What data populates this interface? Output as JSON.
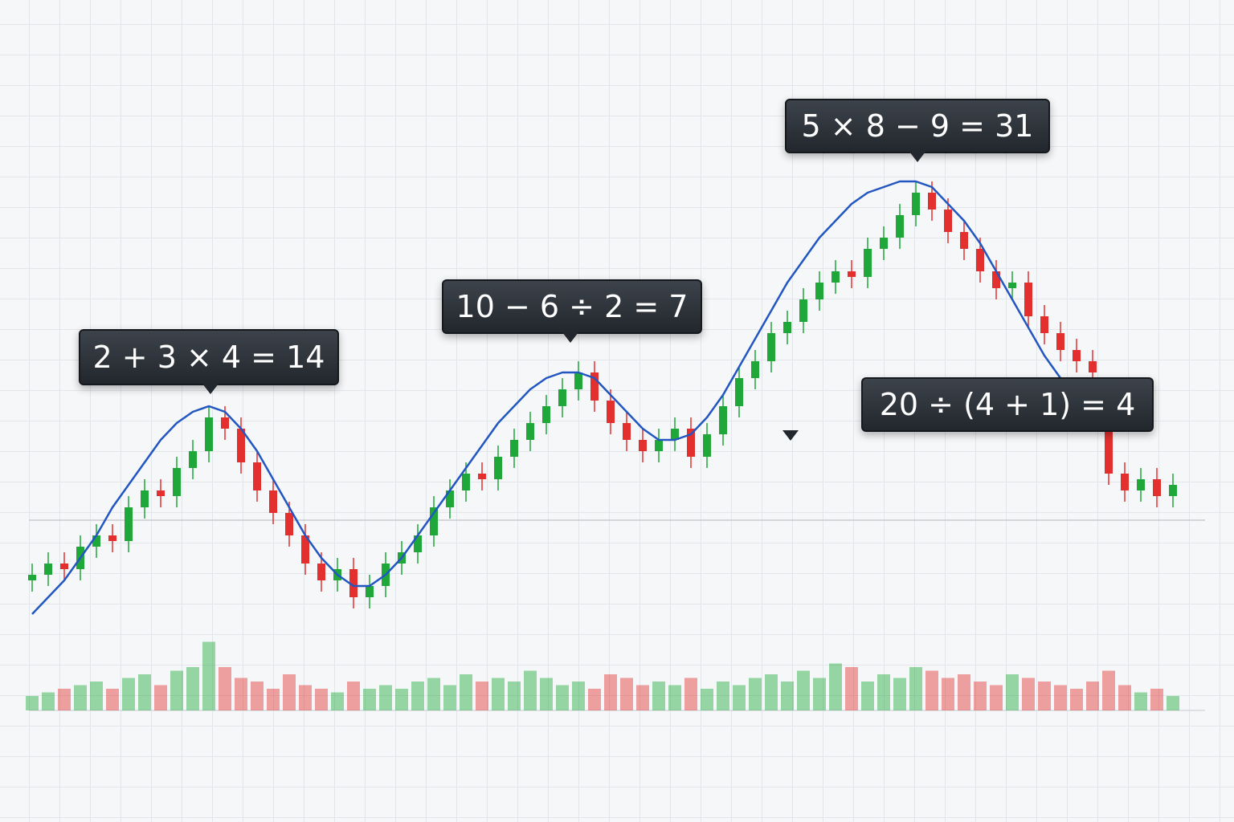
{
  "chart_data": {
    "type": "candlestick",
    "annotations": [
      "2 + 3 × 4 = 14",
      "10 − 6 ÷ 2 = 7",
      "5 × 8 − 9 = 31",
      "20 ÷ (4 + 1) = 4"
    ],
    "open": [
      11,
      12,
      14,
      13,
      17,
      19,
      18,
      24,
      27,
      26,
      31,
      34,
      40,
      38,
      32,
      27,
      23,
      19,
      14,
      11,
      13,
      8,
      10,
      14,
      16,
      19,
      24,
      27,
      30,
      29,
      33,
      36,
      39,
      42,
      45,
      48,
      43,
      39,
      36,
      34,
      36,
      38,
      33,
      37,
      42,
      47,
      50,
      55,
      57,
      61,
      64,
      66,
      65,
      70,
      72,
      76,
      80,
      77,
      73,
      70,
      66,
      63,
      64,
      58,
      55,
      52,
      50,
      38,
      30,
      27,
      29,
      26
    ],
    "high": [
      14,
      16,
      16,
      19,
      21,
      21,
      26,
      29,
      29,
      33,
      36,
      42,
      42,
      40,
      34,
      29,
      25,
      21,
      16,
      15,
      15,
      12,
      16,
      18,
      21,
      26,
      29,
      32,
      32,
      35,
      38,
      41,
      44,
      47,
      50,
      50,
      45,
      41,
      38,
      38,
      40,
      40,
      39,
      44,
      49,
      52,
      57,
      59,
      63,
      66,
      68,
      68,
      72,
      74,
      78,
      82,
      82,
      79,
      75,
      72,
      68,
      66,
      66,
      60,
      57,
      54,
      52,
      40,
      32,
      31,
      31,
      30
    ],
    "low": [
      9,
      10,
      11,
      11,
      15,
      16,
      16,
      22,
      24,
      24,
      29,
      32,
      36,
      30,
      25,
      21,
      17,
      12,
      9,
      9,
      6,
      6,
      8,
      12,
      14,
      17,
      22,
      25,
      27,
      27,
      31,
      34,
      37,
      40,
      43,
      41,
      37,
      34,
      32,
      32,
      34,
      31,
      31,
      35,
      40,
      45,
      48,
      53,
      55,
      59,
      62,
      63,
      63,
      68,
      70,
      74,
      75,
      71,
      68,
      64,
      61,
      61,
      56,
      53,
      50,
      48,
      46,
      28,
      25,
      25,
      24,
      24
    ],
    "close": [
      12,
      14,
      13,
      17,
      19,
      18,
      24,
      27,
      26,
      31,
      34,
      40,
      38,
      32,
      27,
      23,
      19,
      14,
      11,
      13,
      8,
      10,
      14,
      16,
      19,
      24,
      27,
      30,
      29,
      33,
      36,
      39,
      42,
      45,
      48,
      43,
      39,
      36,
      34,
      36,
      38,
      33,
      37,
      42,
      47,
      50,
      55,
      57,
      61,
      64,
      66,
      65,
      70,
      72,
      76,
      80,
      77,
      73,
      70,
      66,
      63,
      64,
      58,
      55,
      52,
      50,
      48,
      30,
      27,
      29,
      26,
      28
    ],
    "volume": [
      20,
      25,
      30,
      35,
      40,
      30,
      45,
      50,
      35,
      55,
      60,
      95,
      60,
      45,
      40,
      30,
      50,
      35,
      30,
      25,
      40,
      30,
      35,
      30,
      40,
      45,
      35,
      50,
      40,
      45,
      40,
      55,
      45,
      35,
      40,
      30,
      50,
      45,
      35,
      40,
      35,
      45,
      30,
      40,
      35,
      45,
      50,
      40,
      55,
      45,
      65,
      60,
      40,
      50,
      45,
      60,
      55,
      45,
      50,
      40,
      35,
      50,
      45,
      40,
      35,
      30,
      40,
      55,
      35,
      25,
      30,
      20
    ],
    "trend": [
      5,
      8,
      11,
      15,
      19,
      24,
      28,
      32,
      36,
      39,
      41,
      42,
      41,
      38,
      34,
      29,
      24,
      19,
      15,
      12,
      10,
      10,
      12,
      15,
      19,
      23,
      27,
      31,
      35,
      39,
      42,
      45,
      47,
      48,
      48,
      47,
      44,
      41,
      38,
      36,
      36,
      37,
      40,
      44,
      49,
      54,
      59,
      64,
      68,
      72,
      75,
      78,
      80,
      81,
      82,
      82,
      81,
      78,
      75,
      71,
      66,
      61,
      56,
      51,
      47,
      44,
      42,
      null,
      null,
      null,
      null,
      null
    ],
    "ylim": [
      0,
      100
    ],
    "volume_lim": [
      0,
      100
    ],
    "up_color": "#1fa839",
    "down_color": "#e3302f",
    "trend_color": "#2256c0"
  }
}
